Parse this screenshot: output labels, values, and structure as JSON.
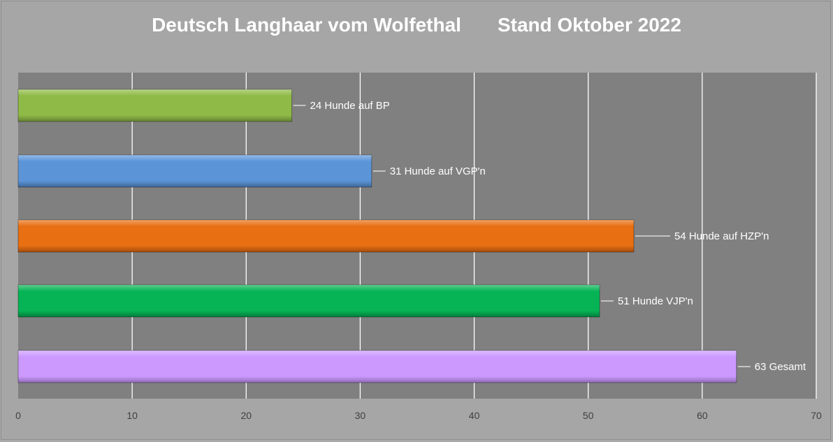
{
  "title": {
    "left": "Deutsch Langhaar vom Wolfethal",
    "right": "Stand Oktober 2022"
  },
  "chart_data": {
    "type": "bar",
    "orientation": "horizontal",
    "title": "Deutsch Langhaar vom Wolfethal      Stand Oktober 2022",
    "categories": [
      "24 Hunde auf BP",
      "31 Hunde auf VGP'n",
      "54 Hunde auf HZP'n",
      "51 Hunde VJP'n",
      "63 Gesamt"
    ],
    "values": [
      24,
      31,
      54,
      51,
      63
    ],
    "data_labels": [
      "24 Hunde auf BP",
      "31 Hunde auf VGP'n",
      "54 Hunde auf HZP'n",
      "51 Hunde VJP'n",
      "63 Gesamt"
    ],
    "colors": [
      "#8fba47",
      "#5b95d8",
      "#e86f12",
      "#06b455",
      "#cc99ff"
    ],
    "xlim": [
      0,
      70
    ],
    "xticks": [
      0,
      10,
      20,
      30,
      40,
      50,
      60,
      70
    ],
    "grid": true,
    "plot_background": "#808080",
    "chart_background": "#a6a6a6"
  }
}
